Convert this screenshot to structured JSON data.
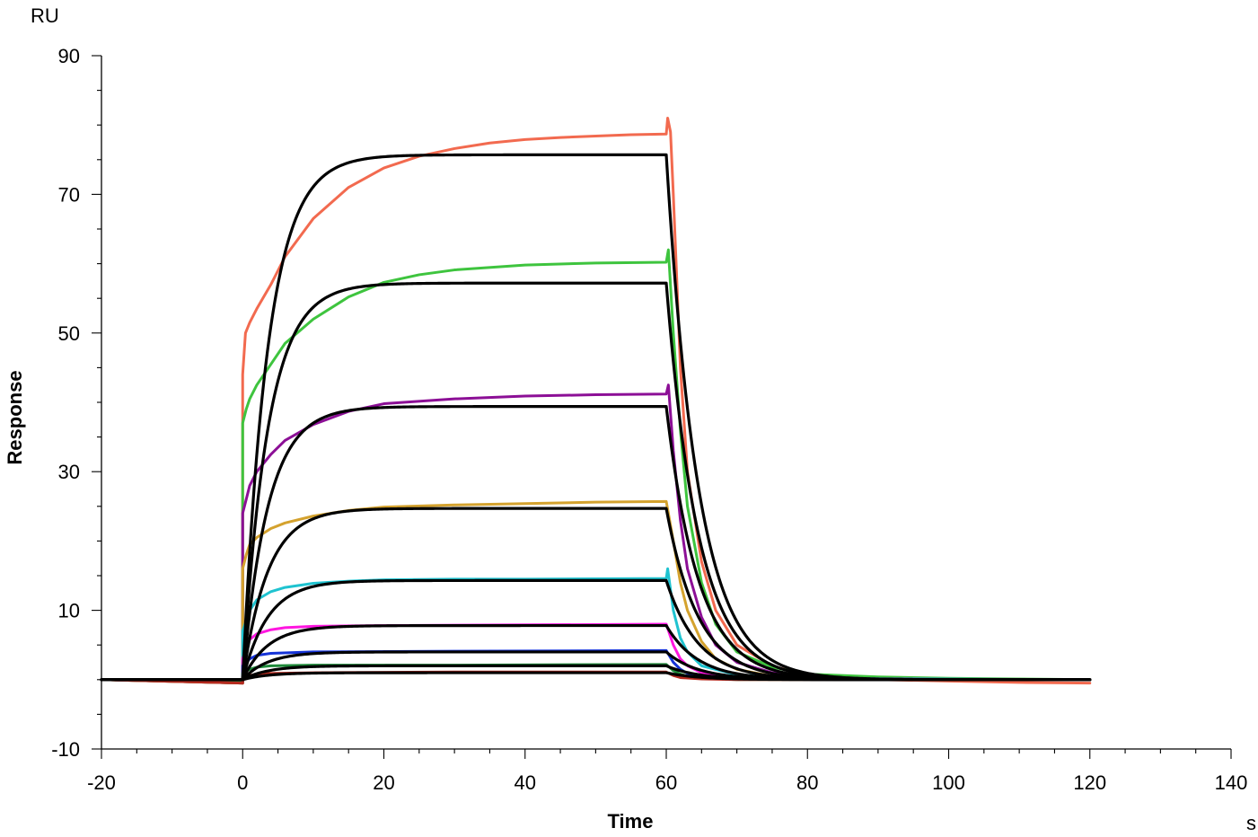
{
  "chart_data": {
    "type": "line",
    "xlabel": "Time",
    "ylabel": "Response",
    "x_unit": "s",
    "y_unit": "RU",
    "xlim": [
      -20,
      140
    ],
    "ylim": [
      -10,
      90
    ],
    "x_ticks": [
      -20,
      0,
      20,
      40,
      60,
      80,
      100,
      120,
      140
    ],
    "y_ticks": [
      -10,
      10,
      30,
      50,
      70,
      90
    ],
    "grid": false,
    "series": [
      {
        "color": "#f26a4f",
        "kind": "data",
        "values": [
          [
            -20,
            0
          ],
          [
            0,
            -0.5
          ],
          [
            0,
            44
          ],
          [
            0.4,
            50
          ],
          [
            1,
            51.5
          ],
          [
            2,
            53.5
          ],
          [
            4,
            57
          ],
          [
            6,
            61
          ],
          [
            10,
            66.5
          ],
          [
            15,
            71
          ],
          [
            20,
            73.8
          ],
          [
            25,
            75.5
          ],
          [
            30,
            76.6
          ],
          [
            35,
            77.4
          ],
          [
            40,
            77.9
          ],
          [
            45,
            78.2
          ],
          [
            50,
            78.4
          ],
          [
            55,
            78.6
          ],
          [
            60,
            78.7
          ],
          [
            60.2,
            81
          ],
          [
            60.6,
            79
          ],
          [
            61,
            70
          ],
          [
            62,
            45
          ],
          [
            63,
            30
          ],
          [
            65,
            17
          ],
          [
            67,
            10
          ],
          [
            70,
            5
          ],
          [
            75,
            2
          ],
          [
            80,
            0.5
          ],
          [
            90,
            0
          ],
          [
            100,
            -0.2
          ],
          [
            110,
            -0.4
          ],
          [
            120,
            -0.5
          ]
        ]
      },
      {
        "color": "#3ec43e",
        "kind": "data",
        "values": [
          [
            -20,
            0
          ],
          [
            0,
            -0.5
          ],
          [
            0,
            37
          ],
          [
            0.5,
            39
          ],
          [
            1,
            40.5
          ],
          [
            2,
            42.5
          ],
          [
            4,
            45.5
          ],
          [
            6,
            48.5
          ],
          [
            10,
            52
          ],
          [
            15,
            55.2
          ],
          [
            20,
            57.3
          ],
          [
            25,
            58.4
          ],
          [
            30,
            59.1
          ],
          [
            40,
            59.8
          ],
          [
            50,
            60.1
          ],
          [
            60,
            60.2
          ],
          [
            60.3,
            62
          ],
          [
            61,
            50
          ],
          [
            62,
            36
          ],
          [
            63,
            25
          ],
          [
            65,
            14
          ],
          [
            67,
            8
          ],
          [
            70,
            4
          ],
          [
            75,
            1.8
          ],
          [
            80,
            0.8
          ],
          [
            90,
            0.4
          ],
          [
            100,
            0.2
          ],
          [
            120,
            0
          ]
        ]
      },
      {
        "color": "#8c0f96",
        "kind": "data",
        "values": [
          [
            -20,
            0
          ],
          [
            0,
            -0.5
          ],
          [
            0,
            24
          ],
          [
            0.5,
            26
          ],
          [
            1,
            28
          ],
          [
            2,
            30
          ],
          [
            4,
            32.5
          ],
          [
            6,
            34.5
          ],
          [
            10,
            36.8
          ],
          [
            15,
            38.7
          ],
          [
            20,
            39.8
          ],
          [
            30,
            40.5
          ],
          [
            40,
            40.9
          ],
          [
            50,
            41.1
          ],
          [
            60,
            41.2
          ],
          [
            60.3,
            42.5
          ],
          [
            61,
            33
          ],
          [
            62,
            23
          ],
          [
            63,
            16
          ],
          [
            65,
            9
          ],
          [
            67,
            5
          ],
          [
            70,
            2.5
          ],
          [
            75,
            1
          ],
          [
            80,
            0.4
          ],
          [
            90,
            0.1
          ],
          [
            120,
            0
          ]
        ]
      },
      {
        "color": "#d4a22e",
        "kind": "data",
        "values": [
          [
            -20,
            0
          ],
          [
            0,
            -0.5
          ],
          [
            0,
            16
          ],
          [
            0.5,
            18
          ],
          [
            1,
            19.5
          ],
          [
            2,
            20.5
          ],
          [
            4,
            21.8
          ],
          [
            6,
            22.6
          ],
          [
            10,
            23.6
          ],
          [
            15,
            24.4
          ],
          [
            20,
            24.9
          ],
          [
            30,
            25.2
          ],
          [
            40,
            25.4
          ],
          [
            50,
            25.6
          ],
          [
            60,
            25.7
          ],
          [
            61,
            20
          ],
          [
            62,
            14
          ],
          [
            63,
            10
          ],
          [
            65,
            5.5
          ],
          [
            67,
            3
          ],
          [
            70,
            1.5
          ],
          [
            75,
            0.5
          ],
          [
            80,
            0.2
          ],
          [
            120,
            0
          ]
        ]
      },
      {
        "color": "#1fc3d0",
        "kind": "data",
        "values": [
          [
            -20,
            0
          ],
          [
            0,
            -0.3
          ],
          [
            0,
            7
          ],
          [
            0.5,
            8.5
          ],
          [
            1,
            10
          ],
          [
            2,
            11.5
          ],
          [
            4,
            12.7
          ],
          [
            6,
            13.3
          ],
          [
            10,
            13.9
          ],
          [
            15,
            14.2
          ],
          [
            20,
            14.4
          ],
          [
            30,
            14.5
          ],
          [
            40,
            14.5
          ],
          [
            60,
            14.6
          ],
          [
            60.2,
            16
          ],
          [
            61,
            10
          ],
          [
            62,
            6
          ],
          [
            63,
            4
          ],
          [
            65,
            2
          ],
          [
            70,
            0.7
          ],
          [
            80,
            0.2
          ],
          [
            120,
            0
          ]
        ]
      },
      {
        "color": "#ff16e0",
        "kind": "data",
        "values": [
          [
            -20,
            0
          ],
          [
            0,
            -0.3
          ],
          [
            0,
            3
          ],
          [
            0.5,
            4.5
          ],
          [
            1,
            5.8
          ],
          [
            2,
            6.6
          ],
          [
            4,
            7.2
          ],
          [
            6,
            7.5
          ],
          [
            10,
            7.7
          ],
          [
            20,
            7.8
          ],
          [
            40,
            7.9
          ],
          [
            60,
            8
          ],
          [
            61,
            5
          ],
          [
            62,
            3
          ],
          [
            63,
            2
          ],
          [
            65,
            1
          ],
          [
            70,
            0.3
          ],
          [
            80,
            0.1
          ],
          [
            120,
            0
          ]
        ]
      },
      {
        "color": "#1533d8",
        "kind": "data",
        "values": [
          [
            -20,
            0
          ],
          [
            0,
            -0.3
          ],
          [
            0,
            2
          ],
          [
            1,
            3
          ],
          [
            2,
            3.5
          ],
          [
            4,
            3.8
          ],
          [
            10,
            4
          ],
          [
            30,
            4.1
          ],
          [
            60,
            4.2
          ],
          [
            61,
            2.5
          ],
          [
            62,
            1.5
          ],
          [
            63,
            0.9
          ],
          [
            65,
            0.4
          ],
          [
            70,
            0.1
          ],
          [
            120,
            0
          ]
        ]
      },
      {
        "color": "#1f8a3a",
        "kind": "data",
        "values": [
          [
            -20,
            0
          ],
          [
            0,
            -0.3
          ],
          [
            0,
            1
          ],
          [
            1,
            1.5
          ],
          [
            2,
            1.8
          ],
          [
            4,
            2
          ],
          [
            10,
            2.1
          ],
          [
            30,
            2.1
          ],
          [
            60,
            2.2
          ],
          [
            61,
            1.3
          ],
          [
            62,
            0.8
          ],
          [
            63,
            0.5
          ],
          [
            65,
            0.2
          ],
          [
            70,
            0
          ],
          [
            120,
            0
          ]
        ]
      },
      {
        "color": "#b52a1f",
        "kind": "data",
        "values": [
          [
            -20,
            0
          ],
          [
            0,
            -0.5
          ],
          [
            0,
            0.3
          ],
          [
            1,
            0.6
          ],
          [
            2,
            0.8
          ],
          [
            4,
            0.9
          ],
          [
            10,
            1
          ],
          [
            30,
            1.1
          ],
          [
            60,
            1.1
          ],
          [
            61,
            0.6
          ],
          [
            62,
            0.3
          ],
          [
            65,
            0.1
          ],
          [
            70,
            0
          ],
          [
            120,
            0
          ]
        ]
      },
      {
        "color": "#000000",
        "kind": "fit",
        "Rmax": 75.7,
        "ka": 0.28,
        "kd": 0.22,
        "baseline": 0
      },
      {
        "color": "#000000",
        "kind": "fit",
        "Rmax": 57.2,
        "ka": 0.28,
        "kd": 0.22,
        "baseline": 0
      },
      {
        "color": "#000000",
        "kind": "fit",
        "Rmax": 39.4,
        "ka": 0.28,
        "kd": 0.22,
        "baseline": 0
      },
      {
        "color": "#000000",
        "kind": "fit",
        "Rmax": 24.7,
        "ka": 0.28,
        "kd": 0.22,
        "baseline": 0
      },
      {
        "color": "#000000",
        "kind": "fit",
        "Rmax": 14.3,
        "ka": 0.28,
        "kd": 0.22,
        "baseline": 0
      },
      {
        "color": "#000000",
        "kind": "fit",
        "Rmax": 7.8,
        "ka": 0.28,
        "kd": 0.22,
        "baseline": 0
      },
      {
        "color": "#000000",
        "kind": "fit",
        "Rmax": 4.0,
        "ka": 0.28,
        "kd": 0.22,
        "baseline": 0
      },
      {
        "color": "#000000",
        "kind": "fit",
        "Rmax": 2.0,
        "ka": 0.28,
        "kd": 0.22,
        "baseline": 0
      },
      {
        "color": "#000000",
        "kind": "fit",
        "Rmax": 1.0,
        "ka": 0.28,
        "kd": 0.22,
        "baseline": 0
      }
    ],
    "association_end": 60,
    "run_end": 120
  }
}
